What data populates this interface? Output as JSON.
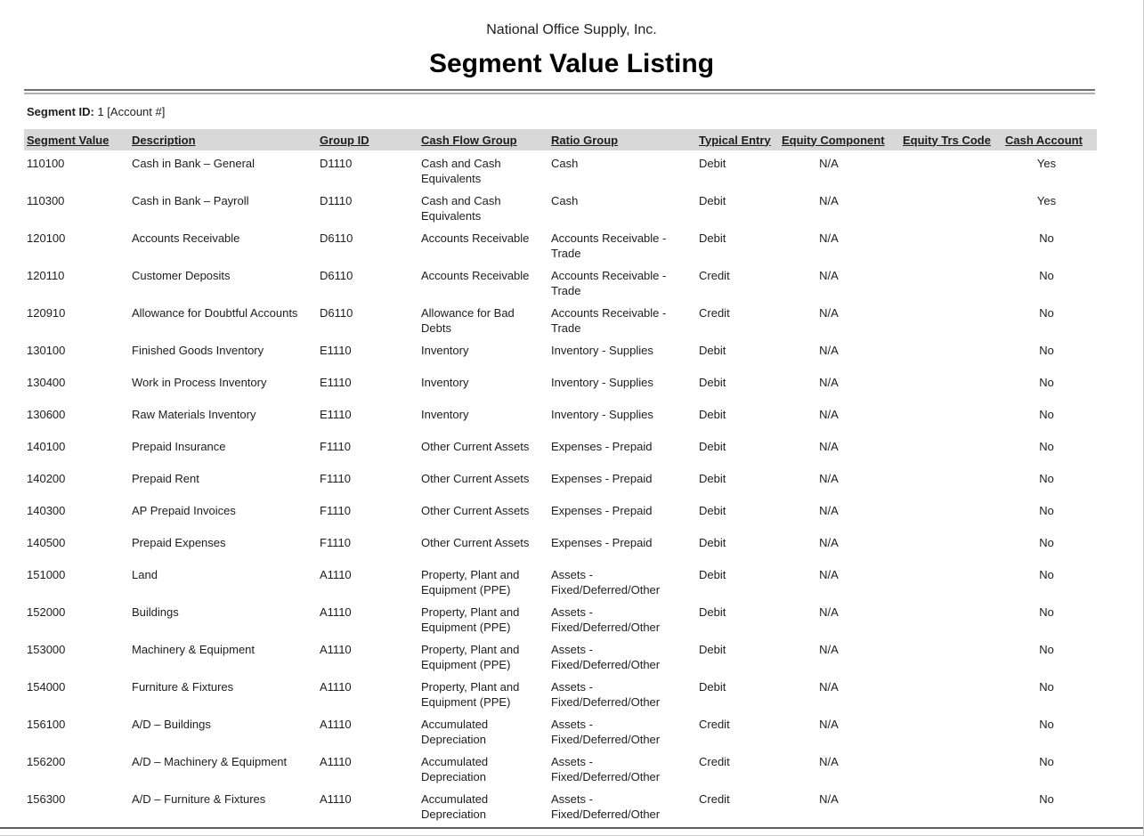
{
  "report": {
    "company": "National Office Supply, Inc.",
    "title": "Segment Value Listing",
    "segment_id_label": "Segment ID:",
    "segment_id_value": "1 [Account #]"
  },
  "colors": {
    "header_band": "#d8d8d8",
    "rule_dark": "#6f6f6f",
    "rule_light": "#b0b0b0",
    "bottom_rule": "#606060",
    "text": "#1d1d1d"
  },
  "table": {
    "columns": [
      {
        "key": "segment_value",
        "label": "Segment Value"
      },
      {
        "key": "description",
        "label": "Description"
      },
      {
        "key": "group_id",
        "label": "Group ID"
      },
      {
        "key": "cash_flow_group",
        "label": "Cash Flow Group"
      },
      {
        "key": "ratio_group",
        "label": "Ratio Group"
      },
      {
        "key": "typical_entry",
        "label": "Typical Entry"
      },
      {
        "key": "equity_component",
        "label": "Equity Component"
      },
      {
        "key": "equity_trs_code",
        "label": "Equity Trs Code"
      },
      {
        "key": "cash_account",
        "label": "Cash Account"
      }
    ],
    "rows": [
      [
        "110100",
        "Cash in Bank – General",
        "D1110",
        "Cash and Cash Equivalents",
        "Cash",
        "Debit",
        "N/A",
        "",
        "Yes"
      ],
      [
        "110300",
        "Cash in Bank – Payroll",
        "D1110",
        "Cash and Cash Equivalents",
        "Cash",
        "Debit",
        "N/A",
        "",
        "Yes"
      ],
      [
        "120100",
        "Accounts Receivable",
        "D6110",
        "Accounts Receivable",
        "Accounts Receivable - Trade",
        "Debit",
        "N/A",
        "",
        "No"
      ],
      [
        "120110",
        "Customer Deposits",
        "D6110",
        "Accounts Receivable",
        "Accounts Receivable - Trade",
        "Credit",
        "N/A",
        "",
        "No"
      ],
      [
        "120910",
        "Allowance for Doubtful Accounts",
        "D6110",
        "Allowance for Bad Debts",
        "Accounts Receivable - Trade",
        "Credit",
        "N/A",
        "",
        "No"
      ],
      [
        "130100",
        "Finished Goods Inventory",
        "E1110",
        "Inventory",
        "Inventory - Supplies",
        "Debit",
        "N/A",
        "",
        "No"
      ],
      [
        "130400",
        "Work in Process Inventory",
        "E1110",
        "Inventory",
        "Inventory - Supplies",
        "Debit",
        "N/A",
        "",
        "No"
      ],
      [
        "130600",
        "Raw Materials Inventory",
        "E1110",
        "Inventory",
        "Inventory - Supplies",
        "Debit",
        "N/A",
        "",
        "No"
      ],
      [
        "140100",
        "Prepaid Insurance",
        "F1110",
        "Other Current Assets",
        "Expenses - Prepaid",
        "Debit",
        "N/A",
        "",
        "No"
      ],
      [
        "140200",
        "Prepaid Rent",
        "F1110",
        "Other Current Assets",
        "Expenses - Prepaid",
        "Debit",
        "N/A",
        "",
        "No"
      ],
      [
        "140300",
        "AP Prepaid Invoices",
        "F1110",
        "Other Current Assets",
        "Expenses - Prepaid",
        "Debit",
        "N/A",
        "",
        "No"
      ],
      [
        "140500",
        "Prepaid Expenses",
        "F1110",
        "Other Current Assets",
        "Expenses - Prepaid",
        "Debit",
        "N/A",
        "",
        "No"
      ],
      [
        "151000",
        "Land",
        "A1110",
        "Property, Plant and Equipment (PPE)",
        "Assets - Fixed/Deferred/Other",
        "Debit",
        "N/A",
        "",
        "No"
      ],
      [
        "152000",
        "Buildings",
        "A1110",
        "Property, Plant and Equipment (PPE)",
        "Assets - Fixed/Deferred/Other",
        "Debit",
        "N/A",
        "",
        "No"
      ],
      [
        "153000",
        "Machinery & Equipment",
        "A1110",
        "Property, Plant and Equipment (PPE)",
        "Assets - Fixed/Deferred/Other",
        "Debit",
        "N/A",
        "",
        "No"
      ],
      [
        "154000",
        "Furniture & Fixtures",
        "A1110",
        "Property, Plant and Equipment (PPE)",
        "Assets - Fixed/Deferred/Other",
        "Debit",
        "N/A",
        "",
        "No"
      ],
      [
        "156100",
        "A/D – Buildings",
        "A1110",
        "Accumulated Depreciation",
        "Assets - Fixed/Deferred/Other",
        "Credit",
        "N/A",
        "",
        "No"
      ],
      [
        "156200",
        "A/D – Machinery & Equipment",
        "A1110",
        "Accumulated Depreciation",
        "Assets - Fixed/Deferred/Other",
        "Credit",
        "N/A",
        "",
        "No"
      ],
      [
        "156300",
        "A/D – Furniture & Fixtures",
        "A1110",
        "Accumulated Depreciation",
        "Assets - Fixed/Deferred/Other",
        "Credit",
        "N/A",
        "",
        "No"
      ]
    ]
  }
}
